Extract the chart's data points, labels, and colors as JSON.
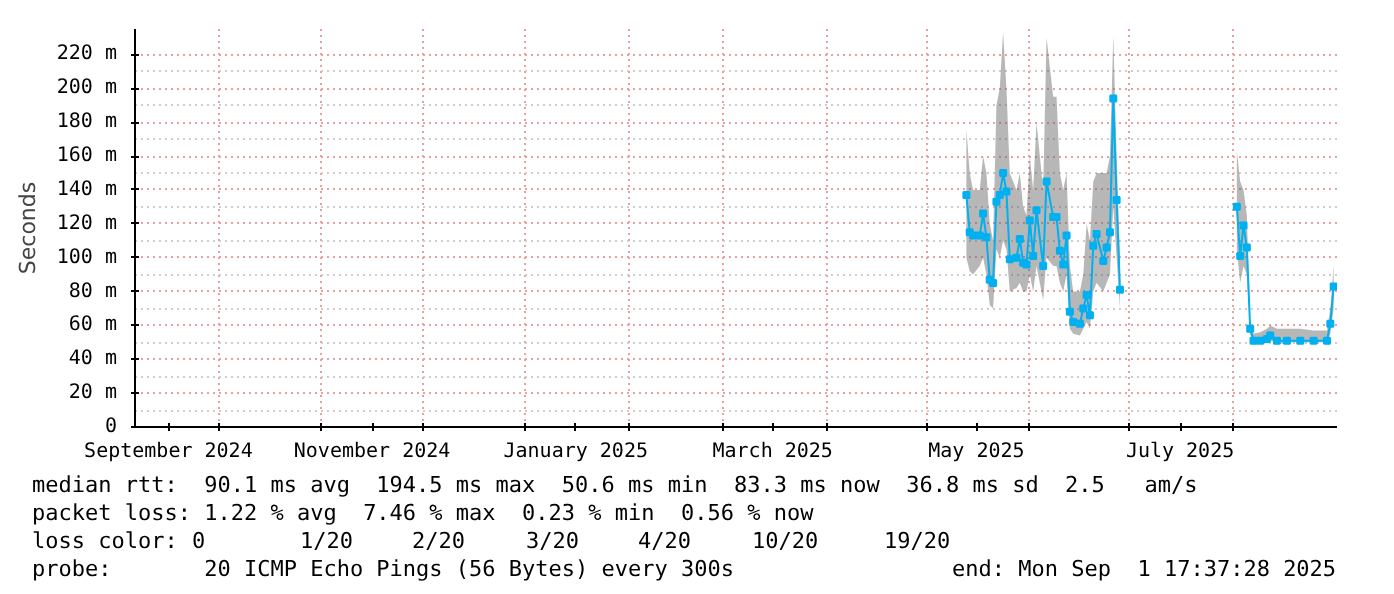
{
  "chart_data": {
    "type": "line",
    "ylabel": "Seconds",
    "x": [
      "2025-05-13",
      "2025-05-14",
      "2025-05-15",
      "2025-05-17",
      "2025-05-18",
      "2025-05-19",
      "2025-05-20",
      "2025-05-21",
      "2025-05-22",
      "2025-05-23",
      "2025-05-24",
      "2025-05-25",
      "2025-05-26",
      "2025-05-28",
      "2025-05-29",
      "2025-05-30",
      "2025-05-31",
      "2025-06-01",
      "2025-06-02",
      "2025-06-03",
      "2025-06-05",
      "2025-06-06",
      "2025-06-08",
      "2025-06-09",
      "2025-06-10",
      "2025-06-11",
      "2025-06-12",
      "2025-06-13",
      "2025-06-14",
      "2025-06-16",
      "2025-06-17",
      "2025-06-18",
      "2025-06-19",
      "2025-06-20",
      "2025-06-21",
      "2025-06-23",
      "2025-06-24",
      "2025-06-25",
      "2025-06-26",
      "2025-06-27",
      "2025-06-28",
      "2025-07-15",
      "2025-08-02",
      "2025-08-03",
      "2025-08-04",
      "2025-08-05",
      "2025-08-06",
      "2025-08-07",
      "2025-08-09",
      "2025-08-11",
      "2025-08-12",
      "2025-08-14",
      "2025-08-17",
      "2025-08-21",
      "2025-08-25",
      "2025-08-29",
      "2025-08-30",
      "2025-08-31"
    ],
    "series": [
      {
        "color": "#00b0f0",
        "values": [
          137,
          115,
          113,
          113,
          126,
          112,
          87,
          85,
          133,
          137,
          150,
          139,
          99,
          100,
          111,
          97,
          96,
          122,
          101,
          128,
          95,
          145,
          124,
          124,
          104,
          96,
          113,
          68,
          62,
          61,
          70,
          78,
          66,
          107,
          114,
          98,
          106,
          115,
          194,
          134,
          81,
          null,
          130,
          101,
          119,
          106,
          58,
          51,
          51,
          52,
          54,
          51,
          51,
          51,
          51,
          51,
          61,
          83
        ],
        "lower": [
          100,
          92,
          90,
          95,
          100,
          90,
          72,
          70,
          105,
          100,
          110,
          105,
          80,
          82,
          85,
          80,
          80,
          90,
          80,
          95,
          75,
          100,
          95,
          95,
          85,
          80,
          90,
          58,
          55,
          54,
          58,
          62,
          58,
          80,
          85,
          80,
          85,
          90,
          130,
          100,
          70,
          null,
          105,
          85,
          95,
          90,
          55,
          49,
          50,
          50,
          51,
          50,
          50,
          50,
          50,
          50,
          55,
          70
        ],
        "upper": [
          176,
          150,
          140,
          140,
          160,
          150,
          120,
          110,
          190,
          200,
          233,
          200,
          150,
          140,
          150,
          130,
          125,
          160,
          140,
          180,
          140,
          230,
          195,
          195,
          150,
          140,
          150,
          95,
          80,
          80,
          90,
          120,
          110,
          145,
          150,
          150,
          150,
          160,
          231,
          160,
          100,
          null,
          163,
          145,
          140,
          125,
          62,
          55,
          56,
          58,
          60,
          58,
          58,
          58,
          57,
          57,
          70,
          95
        ]
      }
    ],
    "xlim": [
      "2024-09-06",
      "2025-09-01"
    ],
    "xticks": [
      {
        "value": "2024-09-16",
        "label": "September 2024"
      },
      {
        "value": "2024-11-16",
        "label": "November 2024"
      },
      {
        "value": "2025-01-16",
        "label": "January 2025"
      },
      {
        "value": "2025-03-16",
        "label": "March 2025"
      },
      {
        "value": "2025-05-16",
        "label": "May 2025"
      },
      {
        "value": "2025-07-16",
        "label": "July 2025"
      },
      {
        "value": "2024-10-01",
        "label": null
      },
      {
        "value": "2024-11-01",
        "label": null
      },
      {
        "value": "2024-12-01",
        "label": null
      },
      {
        "value": "2025-01-01",
        "label": null
      },
      {
        "value": "2025-02-01",
        "label": null
      },
      {
        "value": "2025-03-01",
        "label": null
      },
      {
        "value": "2025-04-01",
        "label": null
      },
      {
        "value": "2025-05-01",
        "label": null
      },
      {
        "value": "2025-06-01",
        "label": null
      },
      {
        "value": "2025-07-01",
        "label": null
      },
      {
        "value": "2025-08-01",
        "label": null
      }
    ],
    "ylim": [
      0,
      235
    ],
    "yticks": [
      0,
      {
        "value": 20,
        "label": "20 m"
      },
      {
        "value": 40,
        "label": "40 m"
      },
      {
        "value": 60,
        "label": "60 m"
      },
      {
        "value": 80,
        "label": "80 m"
      },
      {
        "value": 100,
        "label": "100 m"
      },
      {
        "value": 120,
        "label": "120 m"
      },
      {
        "value": 140,
        "label": "140 m"
      },
      {
        "value": 160,
        "label": "160 m"
      },
      {
        "value": 180,
        "label": "180 m"
      },
      {
        "value": 200,
        "label": "200 m"
      },
      {
        "value": 220,
        "label": "220 m"
      }
    ],
    "grid": true,
    "marker": "square",
    "line_style": "solid",
    "annotations": [
      "median rtt:  90.1 ms avg  194.5 ms max  50.6 ms min  83.3 ms now  36.8 ms sd  2.5   am/s",
      "packet loss: 1.22 % avg  7.46 % max  0.23 % min  0.56 % now",
      "loss color:",
      "0",
      "1/20",
      "2/20",
      "3/20",
      "4/20",
      "10/20",
      "19/20",
      "probe:       20 ICMP Echo Pings (56 Bytes) every 300s",
      "end: Mon Sep  1 17:37:28 2025"
    ]
  }
}
